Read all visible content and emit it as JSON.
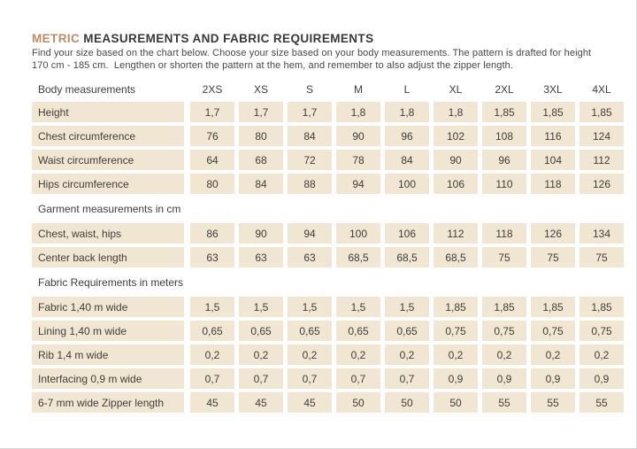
{
  "header": {
    "title_accent": "METRIC",
    "title_rest": " MEASUREMENTS AND FABRIC REQUIREMENTS",
    "subtitle_line1": "Find your size based on the chart below. Choose your size based on your body measurements. The pattern is drafted for height",
    "subtitle_line2": "170 cm - 185 cm.  Lengthen or shorten the pattern at the hem, and remember to also adjust the zipper length."
  },
  "colors": {
    "accent": "#c28a62",
    "cell_bg": "#f1e6d1",
    "text": "#3e3e3e",
    "page_border": "#d9d9d9"
  },
  "table": {
    "header_label": "Body measurements",
    "sizes": [
      "2XS",
      "XS",
      "S",
      "M",
      "L",
      "XL",
      "2XL",
      "3XL",
      "4XL"
    ],
    "sections": [
      {
        "title": "",
        "rows": [
          {
            "label": "Height",
            "values": [
              "1,7",
              "1,7",
              "1,7",
              "1,8",
              "1,8",
              "1,8",
              "1,85",
              "1,85",
              "1,85"
            ]
          },
          {
            "label": "Chest circumference",
            "values": [
              "76",
              "80",
              "84",
              "90",
              "96",
              "102",
              "108",
              "116",
              "124"
            ]
          },
          {
            "label": "Waist circumference",
            "values": [
              "64",
              "68",
              "72",
              "78",
              "84",
              "90",
              "96",
              "104",
              "112"
            ]
          },
          {
            "label": "Hips circumference",
            "values": [
              "80",
              "84",
              "88",
              "94",
              "100",
              "106",
              "110",
              "118",
              "126"
            ]
          }
        ]
      },
      {
        "title": "Garment measurements in cm",
        "rows": [
          {
            "label": "Chest, waist, hips",
            "values": [
              "86",
              "90",
              "94",
              "100",
              "106",
              "112",
              "118",
              "126",
              "134"
            ]
          },
          {
            "label": "Center back length",
            "values": [
              "63",
              "63",
              "63",
              "68,5",
              "68,5",
              "68,5",
              "75",
              "75",
              "75"
            ]
          }
        ]
      },
      {
        "title": "Fabric Requirements in meters",
        "rows": [
          {
            "label": "Fabric 1,40 m wide",
            "values": [
              "1,5",
              "1,5",
              "1,5",
              "1,5",
              "1,5",
              "1,85",
              "1,85",
              "1,85",
              "1,85"
            ]
          },
          {
            "label": "Lining 1,40 m wide",
            "values": [
              "0,65",
              "0,65",
              "0,65",
              "0,65",
              "0,65",
              "0,75",
              "0,75",
              "0,75",
              "0,75"
            ]
          },
          {
            "label": "Rib 1,4 m wide",
            "values": [
              "0,2",
              "0,2",
              "0,2",
              "0,2",
              "0,2",
              "0,2",
              "0,2",
              "0,2",
              "0,2"
            ]
          },
          {
            "label": "Interfacing 0,9 m wide",
            "values": [
              "0,7",
              "0,7",
              "0,7",
              "0,7",
              "0,7",
              "0,9",
              "0,9",
              "0,9",
              "0,9"
            ]
          },
          {
            "label": "6-7 mm wide Zipper length",
            "values": [
              "45",
              "45",
              "45",
              "50",
              "50",
              "50",
              "55",
              "55",
              "55"
            ]
          }
        ]
      }
    ]
  }
}
